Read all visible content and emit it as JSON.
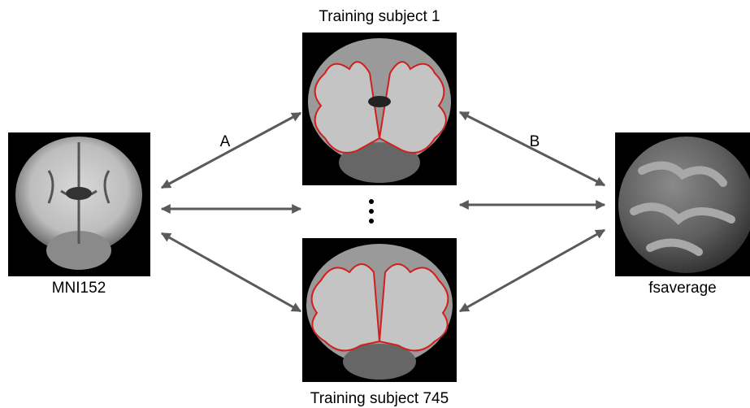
{
  "nodes": [
    {
      "label": "MNI152"
    },
    {
      "label": "Training subject 1"
    },
    {
      "label": "Training subject 745"
    },
    {
      "label": "fsaverage"
    }
  ],
  "edges": [
    {
      "label": "A"
    },
    {
      "label": "B"
    }
  ]
}
